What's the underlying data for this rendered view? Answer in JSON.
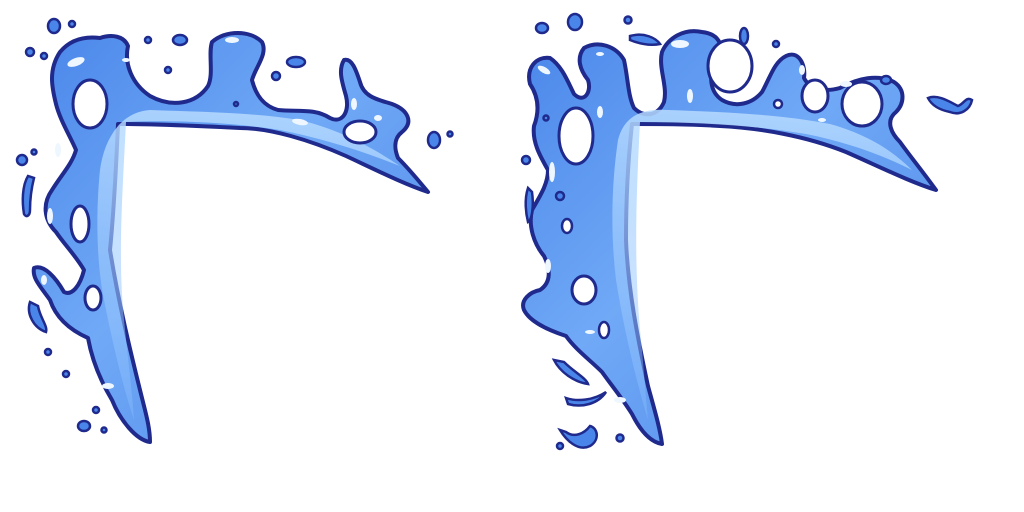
{
  "scene": {
    "background": "#ffffff",
    "colors": {
      "outline": "#1f2a8c",
      "fill_dark": "#3f78e3",
      "fill_mid": "#69a3f5",
      "fill_light": "#a9d1ff",
      "highlight": "#eef7ff"
    },
    "objects": [
      {
        "name": "liquid-corner-frame-left"
      },
      {
        "name": "liquid-corner-frame-right"
      }
    ]
  }
}
